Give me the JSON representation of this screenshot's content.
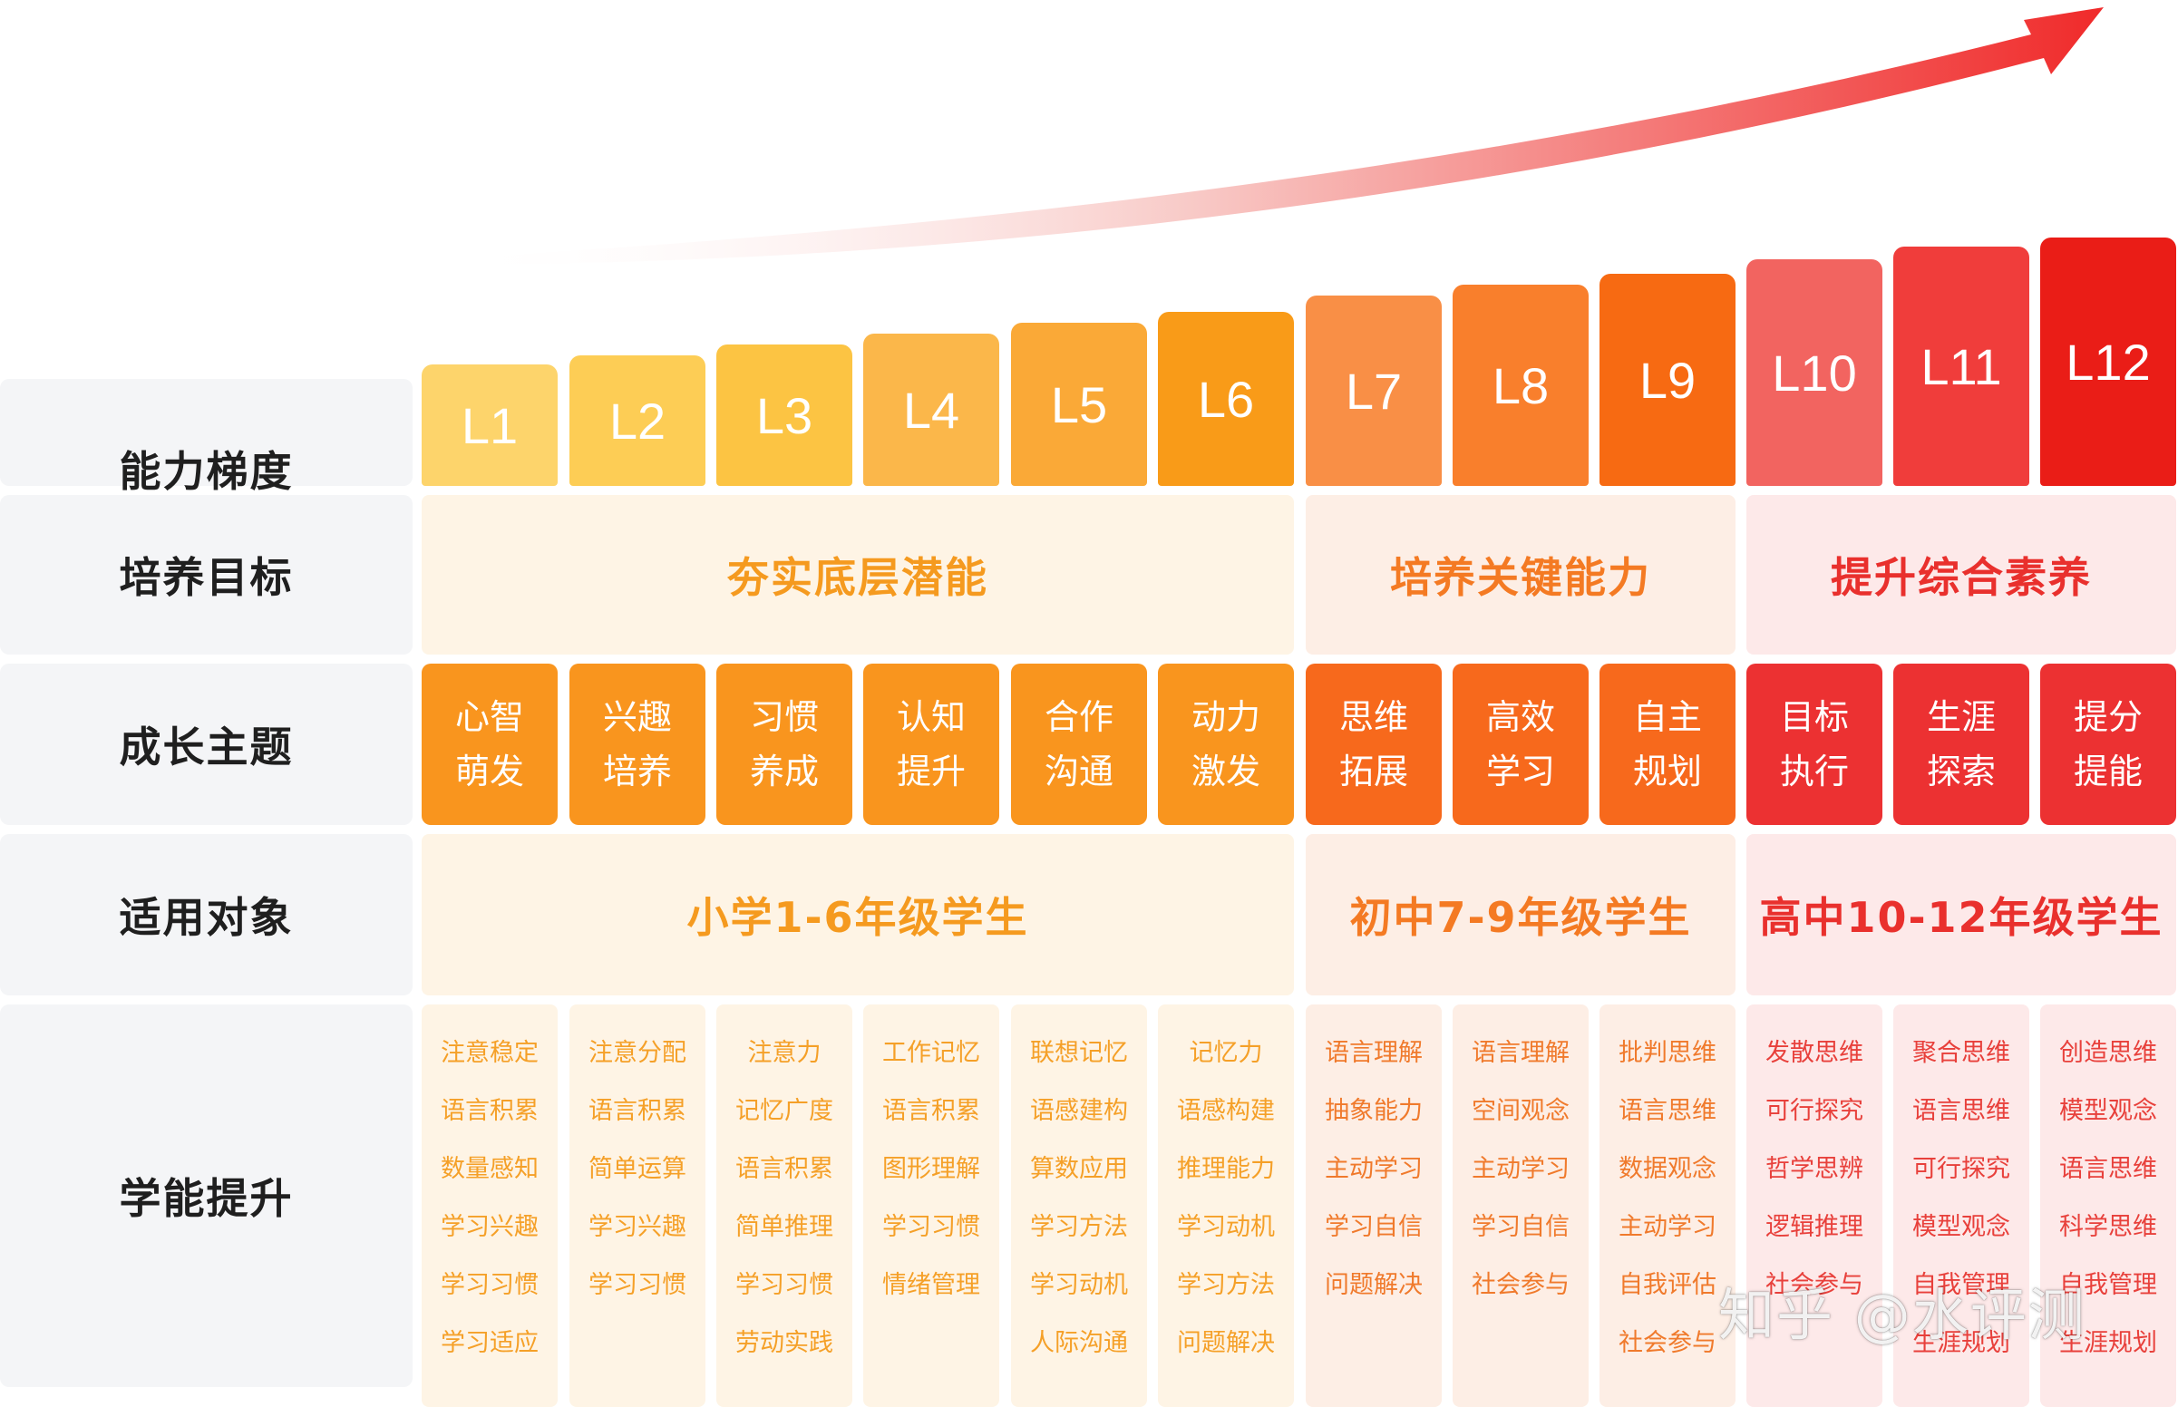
{
  "rows": {
    "levels_label": "能力梯度",
    "goals_label": "培养目标",
    "themes_label": "成长主题",
    "audience_label": "适用对象",
    "skills_label": "学能提升"
  },
  "levels": [
    {
      "label": "L1",
      "color": "#fdd46b"
    },
    {
      "label": "L2",
      "color": "#fdcd55"
    },
    {
      "label": "L3",
      "color": "#fcc443"
    },
    {
      "label": "L4",
      "color": "#fbb74a"
    },
    {
      "label": "L5",
      "color": "#faa937"
    },
    {
      "label": "L6",
      "color": "#f99b18"
    },
    {
      "label": "L7",
      "color": "#f98f46"
    },
    {
      "label": "L8",
      "color": "#f97f2c"
    },
    {
      "label": "L9",
      "color": "#f76a12"
    },
    {
      "label": "L10",
      "color": "#f26460"
    },
    {
      "label": "L11",
      "color": "#f03d3b"
    },
    {
      "label": "L12",
      "color": "#ea1d17"
    }
  ],
  "goals": [
    {
      "text": "夯实底层潜能",
      "color": "#f59a1f",
      "bg": "#fef4e5"
    },
    {
      "text": "培养关键能力",
      "color": "#f47a23",
      "bg": "#fdeee5"
    },
    {
      "text": "提升综合素养",
      "color": "#e9302d",
      "bg": "#fde9e9"
    }
  ],
  "themes": [
    {
      "lines": [
        "心智",
        "萌发"
      ],
      "color": "#f9951e"
    },
    {
      "lines": [
        "兴趣",
        "培养"
      ],
      "color": "#f9951e"
    },
    {
      "lines": [
        "习惯",
        "养成"
      ],
      "color": "#f9951e"
    },
    {
      "lines": [
        "认知",
        "提升"
      ],
      "color": "#f9951e"
    },
    {
      "lines": [
        "合作",
        "沟通"
      ],
      "color": "#f9951e"
    },
    {
      "lines": [
        "动力",
        "激发"
      ],
      "color": "#f9951e"
    },
    {
      "lines": [
        "思维",
        "拓展"
      ],
      "color": "#f7691c"
    },
    {
      "lines": [
        "高效",
        "学习"
      ],
      "color": "#f7691c"
    },
    {
      "lines": [
        "自主",
        "规划"
      ],
      "color": "#f7691c"
    },
    {
      "lines": [
        "目标",
        "执行"
      ],
      "color": "#ec3132"
    },
    {
      "lines": [
        "生涯",
        "探索"
      ],
      "color": "#ec3132"
    },
    {
      "lines": [
        "提分",
        "提能"
      ],
      "color": "#ec3132"
    }
  ],
  "audience": [
    {
      "text": "小学1-6年级学生",
      "color": "#f59a1f",
      "bg": "#fef4e5"
    },
    {
      "text": "初中7-9年级学生",
      "color": "#f47a23",
      "bg": "#fdeee5"
    },
    {
      "text": "高中10-12年级学生",
      "color": "#e9302d",
      "bg": "#fde9e9"
    }
  ],
  "skills": [
    {
      "items": [
        "注意稳定",
        "语言积累",
        "数量感知",
        "学习兴趣",
        "学习习惯",
        "学习适应"
      ],
      "color": "#f5a028",
      "bg": "#fef4e5"
    },
    {
      "items": [
        "注意分配",
        "语言积累",
        "简单运算",
        "学习兴趣",
        "学习习惯"
      ],
      "color": "#f5a028",
      "bg": "#fef4e5"
    },
    {
      "items": [
        "注意力",
        "记忆广度",
        "语言积累",
        "简单推理",
        "学习习惯",
        "劳动实践"
      ],
      "color": "#f5a028",
      "bg": "#fef4e5"
    },
    {
      "items": [
        "工作记忆",
        "语言积累",
        "图形理解",
        "学习习惯",
        "情绪管理"
      ],
      "color": "#f5a028",
      "bg": "#fef4e5"
    },
    {
      "items": [
        "联想记忆",
        "语感建构",
        "算数应用",
        "学习方法",
        "学习动机",
        "人际沟通"
      ],
      "color": "#f5a028",
      "bg": "#fef4e5"
    },
    {
      "items": [
        "记忆力",
        "语感构建",
        "推理能力",
        "学习动机",
        "学习方法",
        "问题解决"
      ],
      "color": "#f5a028",
      "bg": "#fef4e5"
    },
    {
      "items": [
        "语言理解",
        "抽象能力",
        "主动学习",
        "学习自信",
        "问题解决"
      ],
      "color": "#f07a2c",
      "bg": "#fdeee5"
    },
    {
      "items": [
        "语言理解",
        "空间观念",
        "主动学习",
        "学习自信",
        "社会参与"
      ],
      "color": "#f07a2c",
      "bg": "#fdeee5"
    },
    {
      "items": [
        "批判思维",
        "语言思维",
        "数据观念",
        "主动学习",
        "自我评估",
        "社会参与"
      ],
      "color": "#f07a2c",
      "bg": "#fdeee5"
    },
    {
      "items": [
        "发散思维",
        "可行探究",
        "哲学思辨",
        "逻辑推理",
        "社会参与"
      ],
      "color": "#e8403b",
      "bg": "#fde9e9"
    },
    {
      "items": [
        "聚合思维",
        "语言思维",
        "可行探究",
        "模型观念",
        "自我管理",
        "生涯规划"
      ],
      "color": "#e8403b",
      "bg": "#fde9e9"
    },
    {
      "items": [
        "创造思维",
        "模型观念",
        "语言思维",
        "科学思维",
        "自我管理",
        "生涯规划"
      ],
      "color": "#e8403b",
      "bg": "#fde9e9"
    }
  ],
  "watermark": "知乎 @水评测",
  "arrow": {
    "color_start": "#ffffff",
    "color_end": "#f02a2a"
  }
}
